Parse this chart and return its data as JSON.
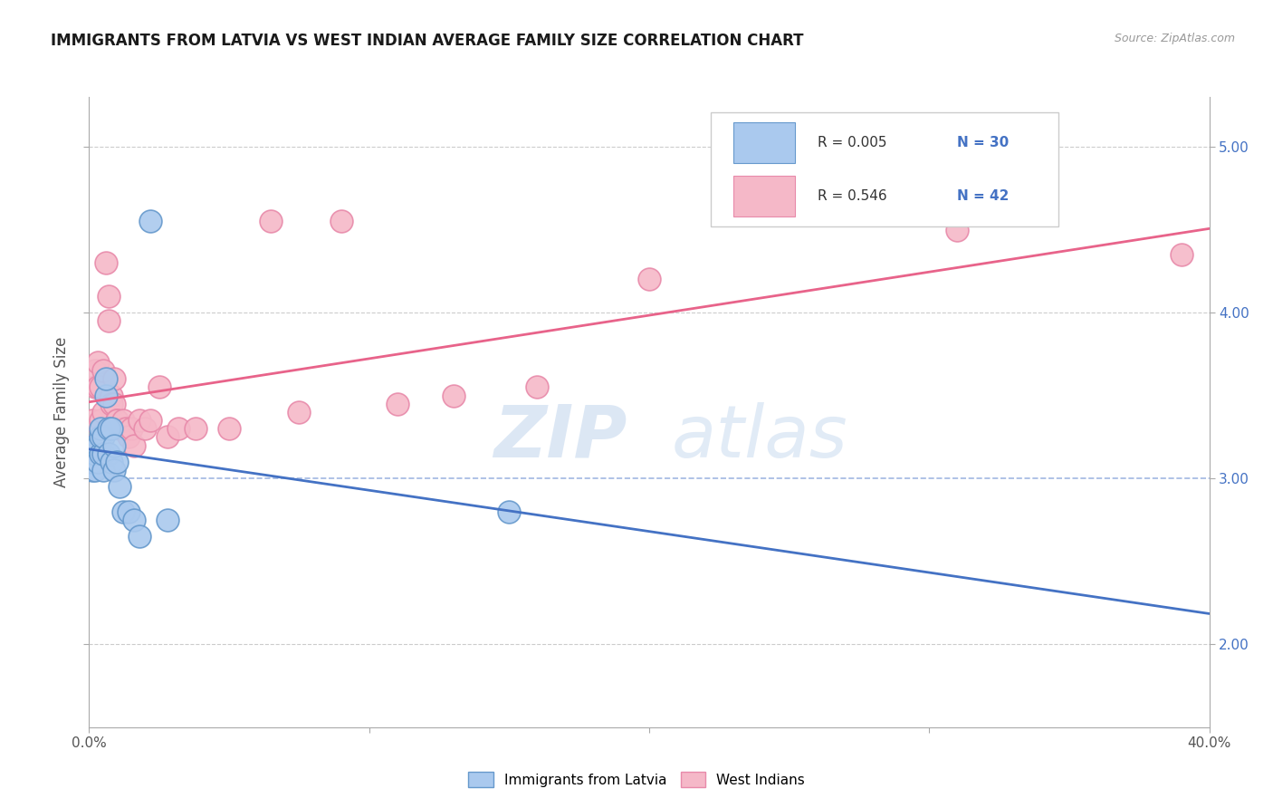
{
  "title": "IMMIGRANTS FROM LATVIA VS WEST INDIAN AVERAGE FAMILY SIZE CORRELATION CHART",
  "source_text": "Source: ZipAtlas.com",
  "ylabel": "Average Family Size",
  "xlim": [
    0.0,
    0.4
  ],
  "ylim": [
    1.5,
    5.3
  ],
  "yticks": [
    2.0,
    3.0,
    4.0,
    5.0
  ],
  "xticks": [
    0.0,
    0.1,
    0.2,
    0.3,
    0.4
  ],
  "xticklabels": [
    "0.0%",
    "",
    "",
    "",
    "40.0%"
  ],
  "watermark_line1": "ZIP",
  "watermark_line2": "atlas",
  "background_color": "#ffffff",
  "grid_color": "#cccccc",
  "latvia_color": "#aac9ee",
  "latvia_edge_color": "#6699cc",
  "west_indian_color": "#f5b8c8",
  "west_indian_edge_color": "#e88aaa",
  "latvia_line_color": "#4472c4",
  "west_indian_line_color": "#e8638a",
  "latvia_x": [
    0.001,
    0.001,
    0.002,
    0.002,
    0.002,
    0.003,
    0.003,
    0.004,
    0.004,
    0.004,
    0.005,
    0.005,
    0.005,
    0.006,
    0.006,
    0.007,
    0.007,
    0.008,
    0.008,
    0.009,
    0.009,
    0.01,
    0.011,
    0.012,
    0.014,
    0.016,
    0.018,
    0.022,
    0.028,
    0.15
  ],
  "latvia_y": [
    3.05,
    3.1,
    3.05,
    3.15,
    3.2,
    3.1,
    3.2,
    3.15,
    3.25,
    3.3,
    3.05,
    3.15,
    3.25,
    3.5,
    3.6,
    3.15,
    3.3,
    3.1,
    3.3,
    3.05,
    3.2,
    3.1,
    2.95,
    2.8,
    2.8,
    2.75,
    2.65,
    4.55,
    2.75,
    2.8
  ],
  "west_indian_x": [
    0.001,
    0.001,
    0.002,
    0.002,
    0.003,
    0.003,
    0.004,
    0.004,
    0.005,
    0.005,
    0.006,
    0.007,
    0.007,
    0.008,
    0.008,
    0.009,
    0.009,
    0.01,
    0.01,
    0.011,
    0.012,
    0.013,
    0.014,
    0.015,
    0.016,
    0.018,
    0.02,
    0.022,
    0.025,
    0.028,
    0.032,
    0.038,
    0.05,
    0.065,
    0.075,
    0.09,
    0.11,
    0.13,
    0.16,
    0.2,
    0.31,
    0.39
  ],
  "west_indian_y": [
    3.2,
    3.35,
    3.55,
    3.65,
    3.55,
    3.7,
    3.35,
    3.55,
    3.4,
    3.65,
    4.3,
    4.1,
    3.95,
    3.5,
    3.45,
    3.6,
    3.45,
    3.35,
    3.35,
    3.3,
    3.35,
    3.3,
    3.25,
    3.3,
    3.2,
    3.35,
    3.3,
    3.35,
    3.55,
    3.25,
    3.3,
    3.3,
    3.3,
    4.55,
    3.4,
    4.55,
    3.45,
    3.5,
    3.55,
    4.2,
    4.5,
    4.35
  ]
}
